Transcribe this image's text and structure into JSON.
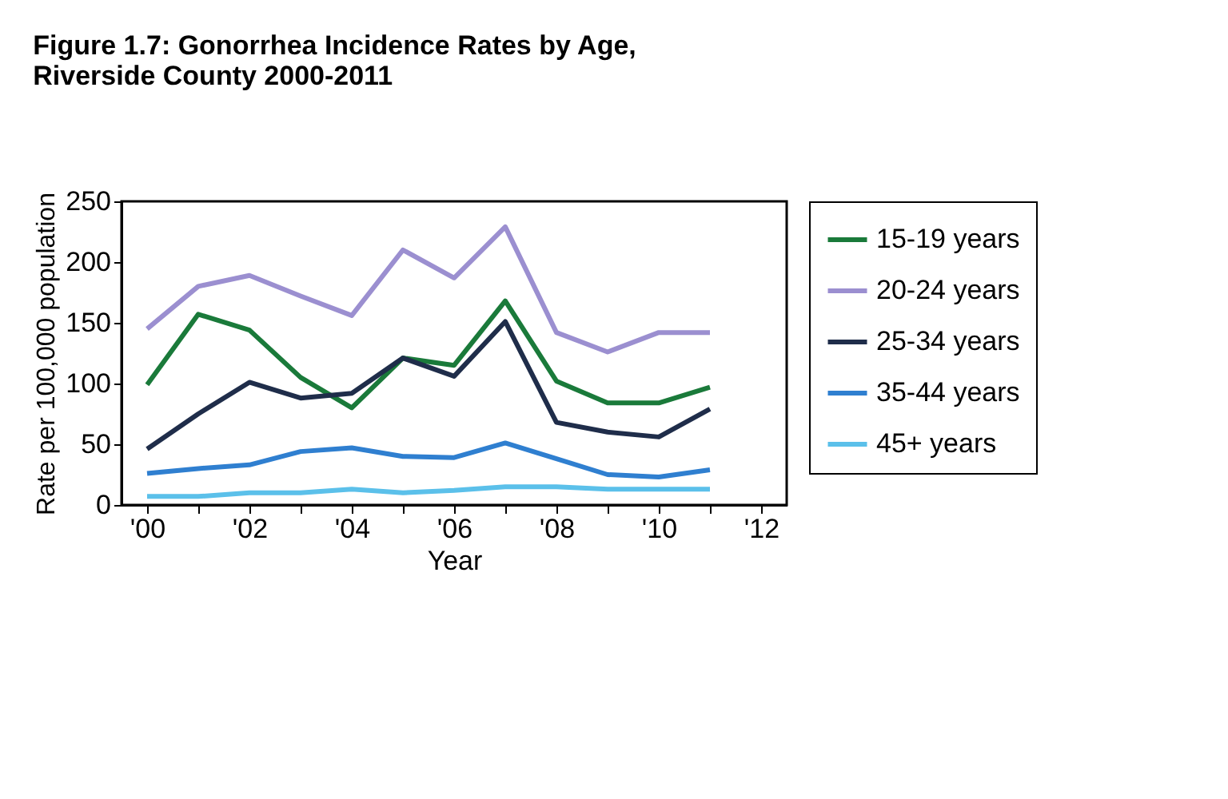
{
  "chart_data": {
    "type": "line",
    "title": "Figure 1.7: Gonorrhea Incidence Rates by Age,\nRiverside County 2000-2011",
    "xlabel": "Year",
    "ylabel": "Rate per 100,000 population",
    "x": [
      2000,
      2001,
      2002,
      2003,
      2004,
      2005,
      2006,
      2007,
      2008,
      2009,
      2010,
      2011
    ],
    "series": [
      {
        "name": "15-19 years",
        "color": "#1a7a3a",
        "values": [
          99,
          157,
          144,
          105,
          80,
          121,
          115,
          168,
          102,
          84,
          84,
          97
        ]
      },
      {
        "name": "20-24 years",
        "color": "#9b8fd0",
        "values": [
          145,
          180,
          189,
          172,
          156,
          210,
          187,
          229,
          142,
          126,
          142,
          142
        ]
      },
      {
        "name": "25-34 years",
        "color": "#1f2d4a",
        "values": [
          46,
          75,
          101,
          88,
          92,
          121,
          106,
          151,
          68,
          60,
          56,
          79
        ]
      },
      {
        "name": "35-44 years",
        "color": "#2f7fd0",
        "values": [
          26,
          30,
          33,
          44,
          47,
          40,
          39,
          51,
          38,
          25,
          23,
          29
        ]
      },
      {
        "name": "45+ years",
        "color": "#5bc0ea",
        "values": [
          7,
          7,
          10,
          10,
          13,
          10,
          12,
          15,
          15,
          13,
          13,
          13
        ]
      }
    ],
    "xlim": [
      1999.5,
      2012.5
    ],
    "xticks": [
      {
        "value": 2000,
        "label": "'00"
      },
      {
        "value": 2001,
        "label": null
      },
      {
        "value": 2002,
        "label": "'02"
      },
      {
        "value": 2003,
        "label": null
      },
      {
        "value": 2004,
        "label": "'04"
      },
      {
        "value": 2005,
        "label": null
      },
      {
        "value": 2006,
        "label": "'06"
      },
      {
        "value": 2007,
        "label": null
      },
      {
        "value": 2008,
        "label": "'08"
      },
      {
        "value": 2009,
        "label": null
      },
      {
        "value": 2010,
        "label": "'10"
      },
      {
        "value": 2011,
        "label": null
      },
      {
        "value": 2012,
        "label": "'12"
      }
    ],
    "ylim": [
      0,
      250
    ],
    "yticks": [
      0,
      50,
      100,
      150,
      200,
      250
    ],
    "grid": false,
    "legend": "right",
    "marker": "none",
    "line_style": "solid"
  }
}
